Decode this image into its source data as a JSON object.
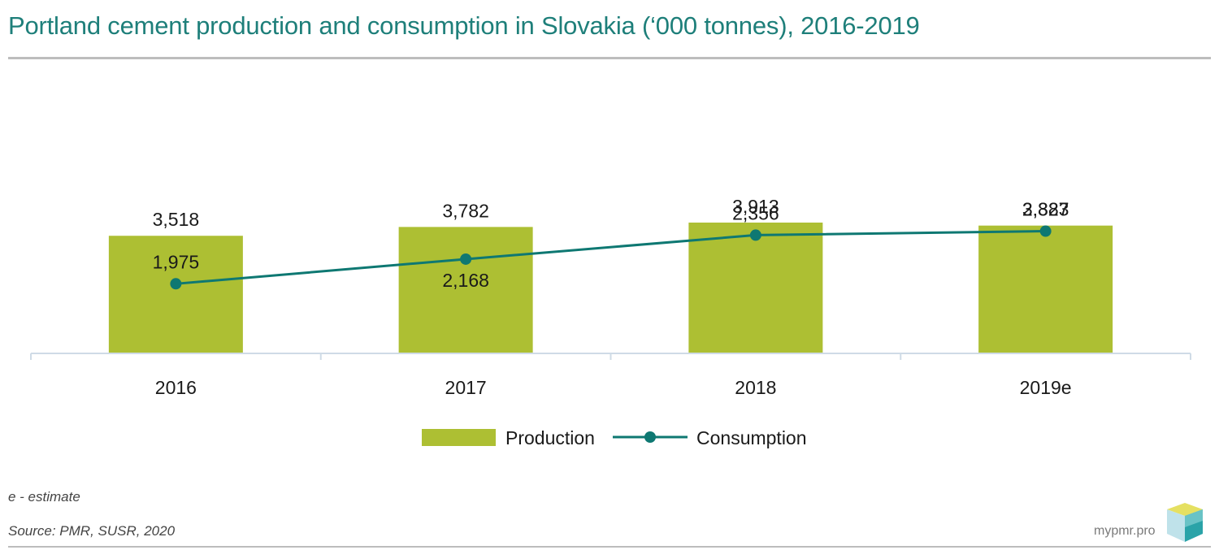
{
  "header": {
    "title": "Portland cement production and consumption in Slovakia (‘000 tonnes), 2016-2019"
  },
  "footer": {
    "note": "e - estimate",
    "source": "Source: PMR, SUSR, 2020",
    "site": "mypmr.pro"
  },
  "colors": {
    "title": "#1e7f7a",
    "production": "#adbf33",
    "consumption": "#0e7872",
    "axis": "#cfdbe6"
  },
  "chart_data": {
    "type": "bar",
    "categories": [
      "2016",
      "2017",
      "2018",
      "2019e"
    ],
    "series": [
      {
        "name": "Production",
        "type": "bar",
        "values": [
          3518,
          3782,
          3913,
          3823
        ],
        "labels": [
          "3,518",
          "3,782",
          "3,913",
          "3,823"
        ]
      },
      {
        "name": "Consumption",
        "type": "line",
        "values": [
          1975,
          2168,
          2356,
          2387
        ],
        "labels": [
          "1,975",
          "2,168",
          "2,356",
          "2,387"
        ]
      }
    ],
    "legend": "bottom-center",
    "grid": false
  }
}
